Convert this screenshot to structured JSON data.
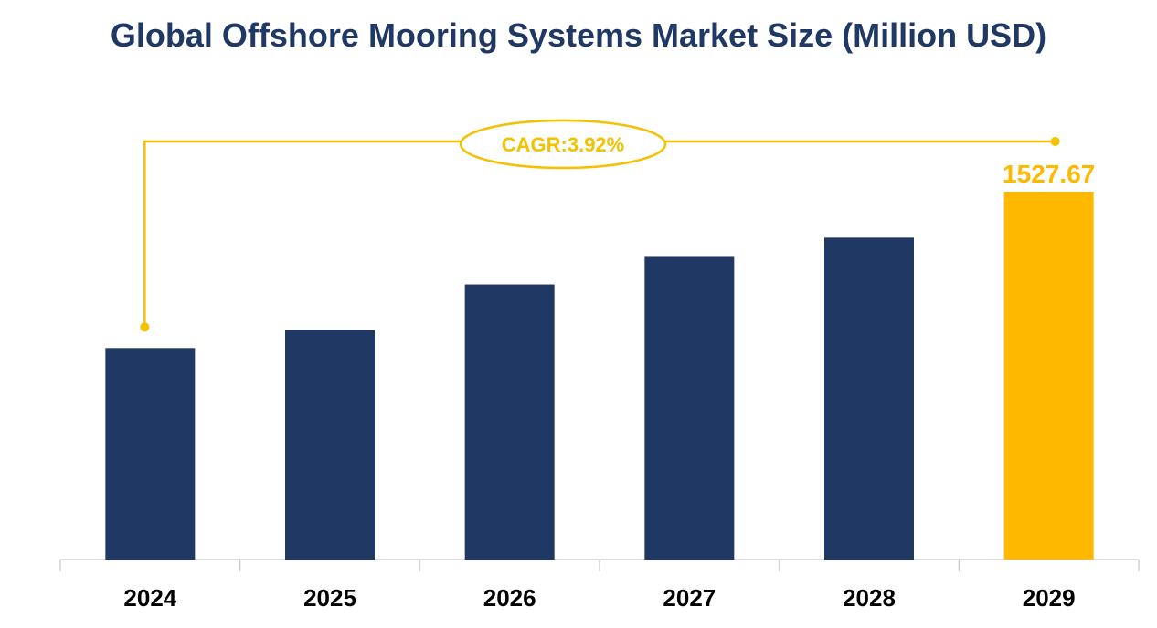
{
  "chart_data": {
    "type": "bar",
    "title": "Global Offshore Mooring Systems Market Size (Million USD)",
    "categories": [
      "2024",
      "2025",
      "2026",
      "2027",
      "2028",
      "2029"
    ],
    "values": [
      1260,
      1291,
      1369,
      1416,
      1449,
      1527.67
    ],
    "data_labels": {
      "2029": "1527.67"
    },
    "ylim": [
      898,
      1600
    ],
    "grid": false,
    "legend": "none",
    "annotation": "CAGR:3.92%",
    "colors": {
      "bar": "#1f3864",
      "highlight": "#ffb800",
      "annotation": "#f5c000",
      "title": "#1f3864"
    }
  }
}
